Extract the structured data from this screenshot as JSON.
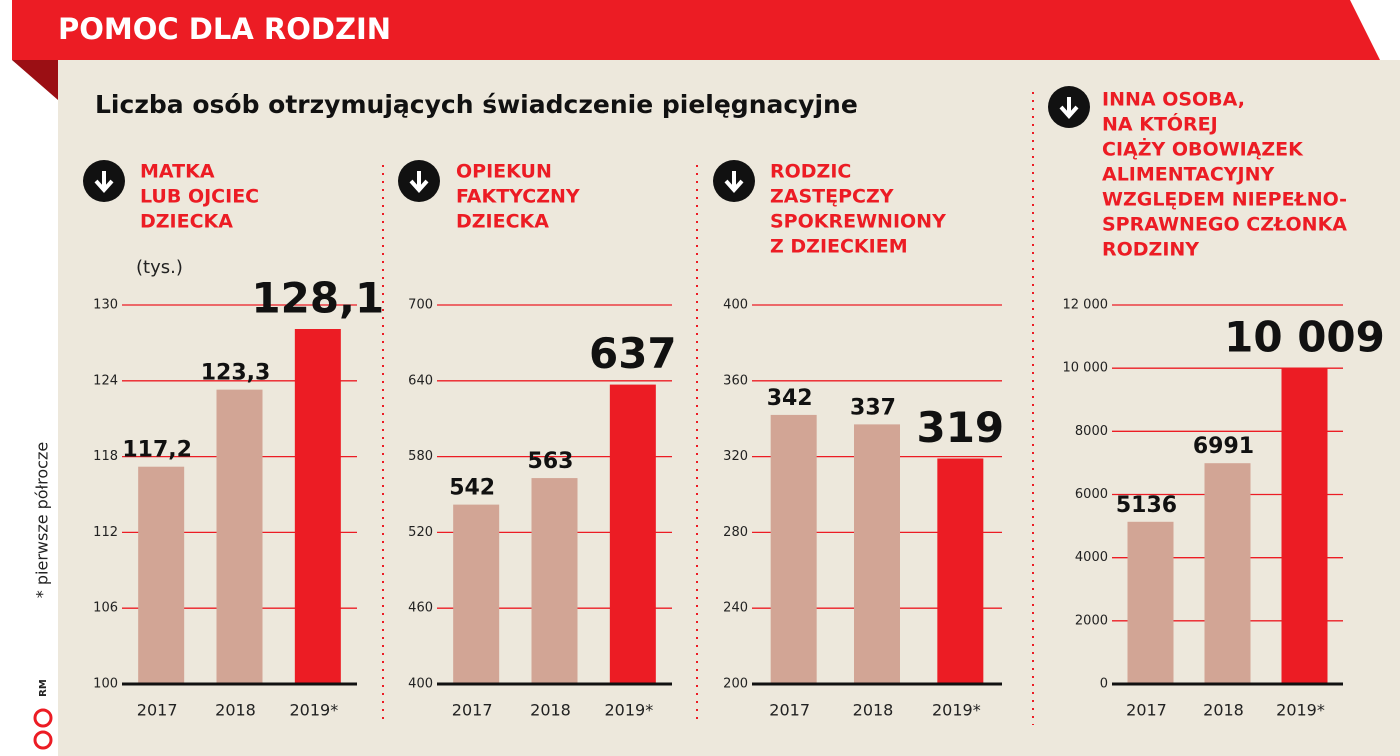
{
  "header": "POMOC DLA RODZIN",
  "subtitle": "Liczba osób otrzymujących świadczenie pielęgnacyjne",
  "footnote": "* pierwsze półrocze",
  "credit": "RM",
  "chart_data": [
    {
      "type": "bar",
      "title": [
        "MATKA",
        "LUB OJCIEC",
        "DZIECKA"
      ],
      "unit": "(tys.)",
      "categories": [
        "2017",
        "2018",
        "2019*"
      ],
      "values": [
        117.2,
        123.3,
        128.1
      ],
      "value_labels": [
        "117,2",
        "123,3",
        "128,1"
      ],
      "colors": [
        "#d2a595",
        "#d2a595",
        "#ec1c24"
      ],
      "ylim": [
        100,
        130
      ],
      "yticks": [
        100,
        106,
        112,
        118,
        124,
        130
      ],
      "grid": true
    },
    {
      "type": "bar",
      "title": [
        "OPIEKUN",
        "FAKTYCZNY",
        "DZIECKA"
      ],
      "categories": [
        "2017",
        "2018",
        "2019*"
      ],
      "values": [
        542,
        563,
        637
      ],
      "colors": [
        "#d2a595",
        "#d2a595",
        "#ec1c24"
      ],
      "ylim": [
        400,
        700
      ],
      "yticks": [
        400,
        460,
        520,
        580,
        640,
        700
      ],
      "grid": true
    },
    {
      "type": "bar",
      "title": [
        "RODZIC",
        "ZASTĘPCZY",
        "SPOKREWNIONY",
        "Z DZIECKIEM"
      ],
      "categories": [
        "2017",
        "2018",
        "2019*"
      ],
      "values": [
        342,
        337,
        319
      ],
      "colors": [
        "#d2a595",
        "#d2a595",
        "#ec1c24"
      ],
      "ylim": [
        200,
        400
      ],
      "yticks": [
        200,
        240,
        280,
        320,
        360,
        400
      ],
      "grid": true
    },
    {
      "type": "bar",
      "title": [
        "INNA OSOBA,",
        "NA KTÓREJ",
        "CIĄŻY OBOWIĄZEK",
        "ALIMENTACYJNY",
        "WZGLĘDEM NIEPEŁNO-",
        "SPRAWNEGO CZŁONKA",
        "RODZINY"
      ],
      "categories": [
        "2017",
        "2018",
        "2019*"
      ],
      "values": [
        5136,
        6991,
        10009
      ],
      "value_labels": [
        "5136",
        "6991",
        "10 009"
      ],
      "colors": [
        "#d2a595",
        "#d2a595",
        "#ec1c24"
      ],
      "ylim": [
        0,
        12000
      ],
      "yticks": [
        0,
        2000,
        4000,
        6000,
        8000,
        {
          "value": 10000,
          "label": "10 000"
        },
        {
          "value": 12000,
          "label": "12 000"
        }
      ],
      "grid": true
    }
  ]
}
